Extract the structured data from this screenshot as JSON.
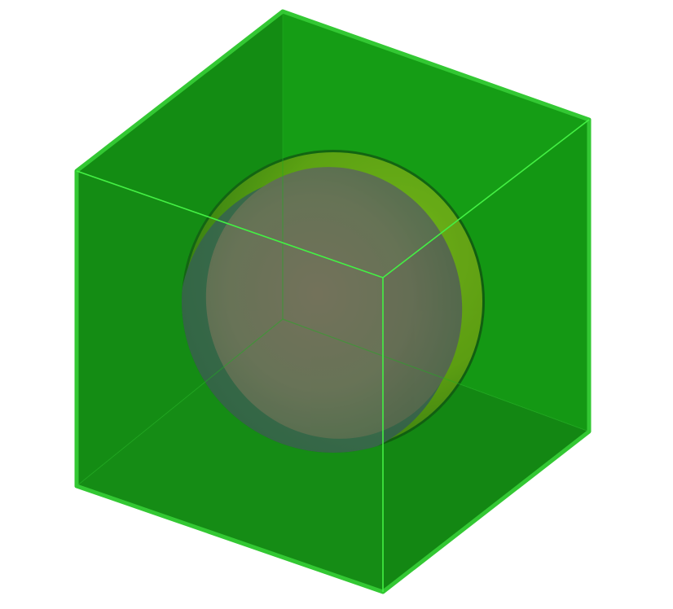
{
  "scene": {
    "background_color": "#ffffff",
    "cube": {
      "face_color": "#139b13",
      "back_face_color": "#117f11",
      "edge_color": "#33c833",
      "front_edge_color": "#44f044"
    },
    "sphere": {
      "front_color": "#c2568a",
      "back_color": "#9fb014",
      "shade_color": "#6a4a80",
      "outline_color": "#0e3a0e"
    }
  }
}
